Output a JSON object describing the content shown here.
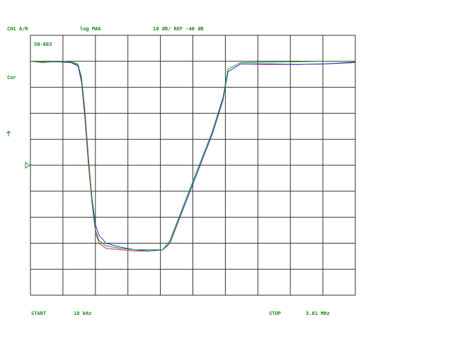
{
  "chart_data": {
    "type": "line",
    "channel": "CH1 A/R",
    "format": "log MAG",
    "scale": "10 dB/ REF -40 dB",
    "annotation": "SN-003",
    "status": "Cor",
    "start_label": "START",
    "start_value": "10 kHz",
    "stop_label": "STOP",
    "stop_value": "3.01 MHz",
    "x": [
      0.01,
      0.121,
      0.252,
      0.383,
      0.448,
      0.481,
      0.513,
      0.546,
      0.579,
      0.611,
      0.644,
      0.709,
      0.84,
      0.97,
      1.101,
      1.232,
      1.298,
      1.428,
      1.559,
      1.69,
      1.788,
      1.834,
      1.951,
      2.213,
      2.474,
      2.736,
      3.01
    ],
    "series": [
      {
        "color": "#e0205a",
        "values": [
          0,
          -0.5,
          0,
          -0.3,
          -1.5,
          -8,
          -22,
          -40,
          -55,
          -66,
          -70,
          -72,
          -72.5,
          -73,
          -73,
          -72.5,
          -69,
          -55,
          -41,
          -27,
          -14,
          -4,
          -1,
          -1.2,
          -1.2,
          -1,
          -0.5
        ]
      },
      {
        "color": "#2030e0",
        "values": [
          0,
          -0.3,
          -0.2,
          -0.5,
          -1.8,
          -7,
          -20,
          -38,
          -53,
          -63,
          -67,
          -70,
          -71.5,
          -72.5,
          -73,
          -72.5,
          -70,
          -56,
          -42,
          -28,
          -15,
          -4,
          -1,
          -1,
          -1.2,
          -1,
          -0.3
        ]
      },
      {
        "color": "#10a010",
        "values": [
          0,
          -0.4,
          0,
          -0.2,
          -1,
          -6,
          -19,
          -37,
          -54,
          -65,
          -69,
          -71,
          -72,
          -72.5,
          -72.5,
          -72.5,
          -69,
          -55,
          -41,
          -27,
          -14,
          -3,
          -0.5,
          -0.3,
          -0.2,
          0,
          0
        ]
      }
    ],
    "xlim": [
      0.01,
      3.01
    ],
    "ylim": [
      -90,
      10
    ],
    "xticks": [
      0.01,
      0.31,
      0.61,
      0.91,
      1.21,
      1.51,
      1.81,
      2.11,
      2.41,
      2.71,
      3.01
    ],
    "yticks": [
      10,
      0,
      -10,
      -20,
      -30,
      -40,
      -50,
      -60,
      -70,
      -80,
      -90
    ],
    "grid": true
  }
}
